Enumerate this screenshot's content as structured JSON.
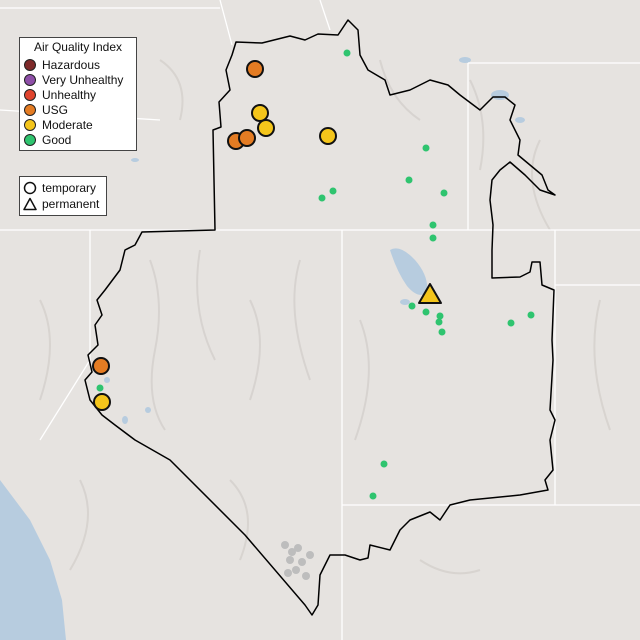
{
  "legend": {
    "title": "Air Quality Index",
    "categories": [
      {
        "label": "Hazardous",
        "color": "#7e2a2a"
      },
      {
        "label": "Very Unhealthy",
        "color": "#8e4fa8"
      },
      {
        "label": "Unhealthy",
        "color": "#e0442e"
      },
      {
        "label": "USG",
        "color": "#e47c23"
      },
      {
        "label": "Moderate",
        "color": "#f4c51b"
      },
      {
        "label": "Good",
        "color": "#2fc46f"
      }
    ]
  },
  "monitor_types": {
    "temporary": {
      "label": "temporary",
      "icon": "circle-outline-icon"
    },
    "permanent": {
      "label": "permanent",
      "icon": "triangle-outline-icon"
    }
  },
  "colors": {
    "background": "#e6e3e0",
    "water": "#b7ccdf",
    "boundary": "#000000",
    "gridline": "#ffffff",
    "unavailable": "#bdbdbd"
  }
}
